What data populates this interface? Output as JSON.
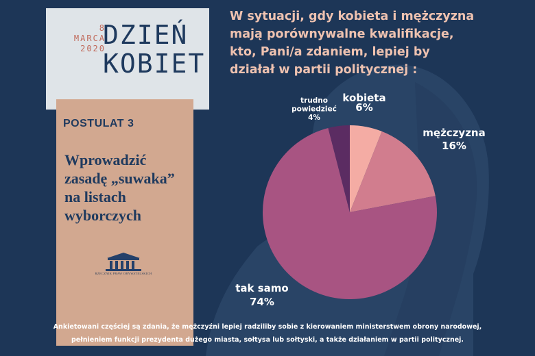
{
  "infographic": {
    "date_line1": "8",
    "date_line2": "MARCA",
    "date_line3": "2020",
    "title_line1": "DZIEŃ",
    "title_line2": "KOBIET",
    "postulat_label": "POSTULAT 3",
    "postulat_text": "Wprowadzić\nzasadę „suwaka”\nna listach\nwyborczych",
    "logo_caption": "RZECZNIK PRAW OBYWATELSKICH",
    "question": "W sytuacji, gdy kobieta i mężczyzna\nmają porównywalne kwalifikacje,\nkto, Pani/a zdaniem, lepiej by\ndziałał w partii politycznej :",
    "footer_line1": "Ankietowani częściej są zdania, że mężczyźni lepiej radziliby sobie z kierowaniem ministerstwem obrony narodowej,",
    "footer_line2": "pełnieniem funkcji prezydenta dużego miasta, sołtysa lub sołtyski, a także działaniem w partii politycznej."
  },
  "colors": {
    "background": "#1d3657",
    "accent_text": "#eec2b0",
    "card_light": "#dfe4e8",
    "card_peach": "#d2a890"
  },
  "chart_data": {
    "type": "pie",
    "title": "",
    "slices": [
      {
        "label": "kobieta",
        "value": 6,
        "value_label": "6%",
        "color": "#f4aca4"
      },
      {
        "label": "mężczyzna",
        "value": 16,
        "value_label": "16%",
        "color": "#d17d8e"
      },
      {
        "label": "tak samo",
        "value": 74,
        "value_label": "74%",
        "color": "#a85482"
      },
      {
        "label": "trudno\npowiedzieć",
        "value": 4,
        "value_label": "4%",
        "color": "#5b2c62"
      }
    ]
  }
}
